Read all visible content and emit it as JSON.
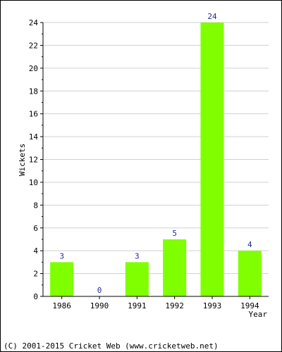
{
  "chart_data": {
    "type": "bar",
    "categories": [
      "1986",
      "1990",
      "1991",
      "1992",
      "1993",
      "1994"
    ],
    "values": [
      3,
      0,
      3,
      5,
      24,
      4
    ],
    "title": "",
    "xlabel": "Year",
    "ylabel": "Wickets",
    "ylim": [
      0,
      24
    ],
    "yticks": [
      0,
      2,
      4,
      6,
      8,
      10,
      12,
      14,
      16,
      18,
      20,
      22,
      24
    ],
    "grid": true,
    "bar_color": "#80ff00",
    "label_color": "#1f2a9c"
  },
  "footer": {
    "copyright": "(C) 2001-2015 Cricket Web (www.cricketweb.net)"
  }
}
